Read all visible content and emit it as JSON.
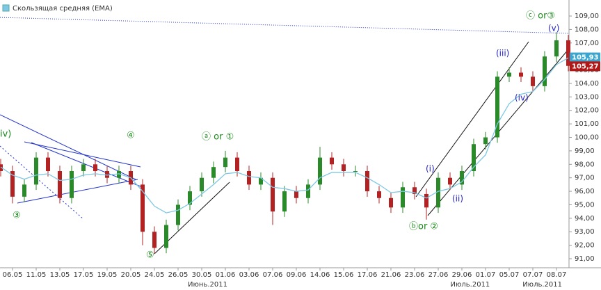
{
  "chart_data": {
    "type": "candlestick",
    "legend": "Скользящая средняя (EMA)",
    "categories": [
      null,
      "06.05",
      null,
      "11.05",
      null,
      "13.05",
      null,
      "17.05",
      null,
      "19.05",
      null,
      "20.05",
      null,
      "24.05",
      null,
      "26.05",
      null,
      "30.05",
      null,
      "01.06",
      null,
      "03.06",
      null,
      "07.06",
      null,
      "09.06",
      null,
      "14.06",
      null,
      "15.06",
      null,
      "17.06",
      null,
      "21.06",
      null,
      "23.06",
      null,
      "27.06",
      null,
      "29.06",
      null,
      "01.07",
      null,
      "05.07",
      null,
      "07.07",
      null,
      "08.07",
      null
    ],
    "month_labels": [
      {
        "index": 17.5,
        "label": "Июнь.2011"
      },
      {
        "index": 39.7,
        "label": "Июль.2011"
      },
      {
        "index": 45.8,
        "label": "Июль.2011"
      }
    ],
    "open": [
      98,
      97.5,
      95.6,
      96.5,
      98.5,
      97.5,
      95.5,
      97.5,
      98,
      97.5,
      97,
      97.5,
      96.5,
      93,
      91.8,
      93.5,
      95,
      96,
      97,
      97.8,
      98.5,
      97.5,
      96.5,
      97,
      94.5,
      96,
      95.5,
      96.5,
      98.5,
      98,
      97.5,
      97.5,
      96,
      95.5,
      94.8,
      96.3,
      95.8,
      94.8,
      97,
      96.5,
      97.5,
      99.5,
      100,
      104.5,
      104.8,
      104.5,
      103.8,
      106,
      107.2
    ],
    "high": [
      98.4,
      97.9,
      96.9,
      98.9,
      98.9,
      97.9,
      97.9,
      98.4,
      98.4,
      97.9,
      97.9,
      97.9,
      96.9,
      93.4,
      93.9,
      95.4,
      96.4,
      97.4,
      98.2,
      99,
      98.9,
      97.9,
      97.4,
      97.4,
      96.4,
      96.4,
      96.9,
      99.3,
      98.9,
      98.4,
      97.9,
      97.9,
      96.4,
      95.9,
      96.7,
      96.7,
      96.2,
      97.4,
      97.4,
      97.9,
      99.9,
      100.4,
      104.9,
      105.2,
      105.2,
      104.9,
      106.4,
      107.8,
      107.6
    ],
    "low": [
      97.1,
      95.1,
      95.2,
      96.1,
      97.1,
      95.1,
      95.1,
      97.1,
      97.1,
      96.6,
      96.6,
      96.1,
      92,
      91.4,
      91.4,
      93.1,
      94.6,
      95.6,
      96.6,
      97.4,
      97.1,
      96.1,
      96.1,
      93.5,
      94.1,
      95.1,
      95.1,
      96.1,
      97.6,
      97.1,
      97.1,
      95.6,
      95.1,
      94.4,
      94.4,
      95.4,
      93.9,
      94.4,
      96.1,
      96.1,
      97.1,
      99.1,
      99.6,
      104.1,
      104.1,
      103.4,
      103.4,
      105.6,
      104.9
    ],
    "close": [
      97.5,
      95.6,
      96.5,
      98.5,
      97.5,
      95.5,
      97.5,
      98,
      97.5,
      97,
      97.5,
      96.5,
      93,
      91.8,
      93.5,
      95,
      96,
      97,
      97.8,
      98.5,
      97.5,
      96.5,
      97,
      94.5,
      96,
      95.5,
      96.5,
      98.5,
      98,
      97.5,
      97.5,
      96,
      95.5,
      94.8,
      96.3,
      95.8,
      94.8,
      97,
      96.5,
      97.5,
      99.5,
      100,
      104.5,
      104.8,
      104.5,
      103.8,
      106,
      107.2,
      105.3
    ],
    "ema": {
      "name": "EMA",
      "color": "#7ec8e3",
      "values": [
        97.8,
        97.2,
        96.9,
        97.2,
        97.3,
        96.8,
        96.9,
        97.2,
        97.3,
        97.2,
        97.3,
        97,
        96,
        94.9,
        94.4,
        94.6,
        95.1,
        95.8,
        96.5,
        97.3,
        97.4,
        97.1,
        97,
        96.3,
        96.2,
        96,
        96.1,
        97,
        97.4,
        97.4,
        97.4,
        97,
        96.5,
        95.9,
        96,
        95.9,
        95.5,
        96,
        96.2,
        96.7,
        97.8,
        98.7,
        101,
        102.5,
        103.2,
        103.4,
        104.3,
        105.4,
        105.9
      ]
    },
    "up_color": "#2a8a2a",
    "down_color": "#b22222",
    "last_labels": [
      {
        "value": 105.93,
        "label": "105,93",
        "color": "#3aa6d0"
      },
      {
        "value": 105.27,
        "label": "105,27",
        "color": "#b01818"
      }
    ],
    "ylim": [
      90.33,
      109.93
    ],
    "yticks": [
      {
        "value": 91,
        "label": "91,00"
      },
      {
        "value": 92,
        "label": "92,00"
      },
      {
        "value": 93,
        "label": "93,00"
      },
      {
        "value": 94,
        "label": "94,00"
      },
      {
        "value": 95,
        "label": "95,00"
      },
      {
        "value": 96,
        "label": "96,00"
      },
      {
        "value": 97,
        "label": "97,00"
      },
      {
        "value": 98,
        "label": "98,00"
      },
      {
        "value": 99,
        "label": "99,00"
      },
      {
        "value": 100,
        "label": "100,00"
      },
      {
        "value": 101,
        "label": "101,00"
      },
      {
        "value": 102,
        "label": "102,00"
      },
      {
        "value": 103,
        "label": "103,00"
      },
      {
        "value": 104,
        "label": "104,00"
      },
      {
        "value": 105,
        "label": "105,00"
      },
      {
        "value": 106,
        "label": "106,00"
      },
      {
        "value": 107,
        "label": "107,00"
      },
      {
        "value": 108,
        "label": "108,00"
      },
      {
        "value": 109,
        "label": "109,00"
      }
    ],
    "annotations": [
      "iv)",
      "③",
      "④",
      "⑤",
      "ⓐ or ①",
      "(i)",
      "(ii)",
      "(iii)",
      "(iv)",
      "(v)",
      "ⓑor ②",
      "ⓒ or③"
    ]
  }
}
